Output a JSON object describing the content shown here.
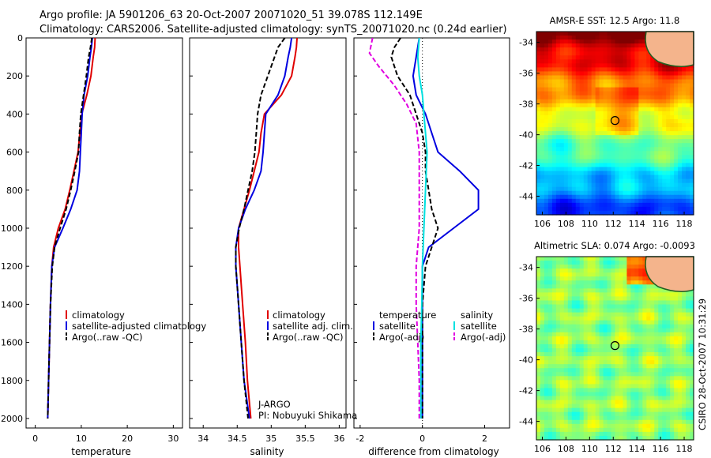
{
  "figure": {
    "title_line1": "Argo profile: JA 5901206_63 20-Oct-2007 20071020_51 39.078S 112.149E",
    "title_line2": "Climatology: CARS2006. Satellite-adjusted climatology: synTS_20071020.nc (0.24d earlier)",
    "vertical_note": "CSIRO 28-Oct-2007 10:31:29",
    "project_label": "J-ARGO",
    "pi_label": "PI: Nobuyuki Shikama"
  },
  "colors": {
    "climatology": "#e00000",
    "satellite": "#0000e0",
    "argo": "#000000",
    "salinity_satellite": "#00e0e0",
    "salinity_argo": "#e000e0",
    "land": "#f4b48c"
  },
  "chart_data": [
    {
      "type": "line",
      "xlabel": "temperature",
      "ylabel": "",
      "xlim": [
        -2,
        32
      ],
      "ylim": [
        2050,
        0
      ],
      "xticks": [
        0,
        10,
        20,
        30
      ],
      "yticks": [
        0,
        200,
        400,
        600,
        800,
        1000,
        1200,
        1400,
        1600,
        1800,
        2000
      ],
      "legend": [
        "climatology",
        "satellite-adjusted climatology",
        "Argo(..raw -QC)"
      ],
      "series": [
        {
          "name": "climatology",
          "style": "solid",
          "color": "#e00000",
          "points": [
            [
              13.0,
              0
            ],
            [
              12.9,
              50
            ],
            [
              12.6,
              100
            ],
            [
              12.1,
              200
            ],
            [
              11.2,
              300
            ],
            [
              10.1,
              400
            ],
            [
              9.7,
              500
            ],
            [
              9.3,
              600
            ],
            [
              8.4,
              700
            ],
            [
              7.5,
              800
            ],
            [
              6.5,
              900
            ],
            [
              5.0,
              1000
            ],
            [
              4.0,
              1100
            ],
            [
              3.6,
              1200
            ],
            [
              3.3,
              1400
            ],
            [
              3.1,
              1600
            ],
            [
              2.9,
              1800
            ],
            [
              2.7,
              2000
            ]
          ]
        },
        {
          "name": "satellite-adjusted climatology",
          "style": "solid",
          "color": "#0000e0",
          "points": [
            [
              12.4,
              0
            ],
            [
              12.2,
              50
            ],
            [
              11.9,
              100
            ],
            [
              11.4,
              200
            ],
            [
              10.6,
              300
            ],
            [
              10.2,
              400
            ],
            [
              10.0,
              500
            ],
            [
              9.8,
              600
            ],
            [
              9.6,
              700
            ],
            [
              9.1,
              800
            ],
            [
              7.7,
              900
            ],
            [
              6.0,
              1000
            ],
            [
              4.2,
              1100
            ],
            [
              3.6,
              1200
            ],
            [
              3.3,
              1400
            ],
            [
              3.1,
              1600
            ],
            [
              2.9,
              1800
            ],
            [
              2.7,
              2000
            ]
          ]
        },
        {
          "name": "Argo(..raw -QC)",
          "style": "dashed",
          "color": "#000000",
          "points": [
            [
              12.3,
              0
            ],
            [
              12.0,
              50
            ],
            [
              11.6,
              100
            ],
            [
              11.1,
              200
            ],
            [
              10.5,
              300
            ],
            [
              9.9,
              400
            ],
            [
              9.6,
              500
            ],
            [
              9.4,
              600
            ],
            [
              8.6,
              700
            ],
            [
              7.7,
              800
            ],
            [
              6.7,
              900
            ],
            [
              5.4,
              1000
            ],
            [
              4.2,
              1100
            ],
            [
              3.7,
              1200
            ],
            [
              3.3,
              1400
            ],
            [
              3.1,
              1600
            ],
            [
              2.9,
              1800
            ],
            [
              2.7,
              2000
            ]
          ]
        }
      ]
    },
    {
      "type": "line",
      "xlabel": "salinity",
      "ylabel": "",
      "xlim": [
        33.8,
        36.1
      ],
      "ylim": [
        2050,
        0
      ],
      "xticks": [
        34,
        34.5,
        35,
        35.5,
        36
      ],
      "legend": [
        "climatology",
        "satellite adj. clim.",
        "Argo(..raw -QC)"
      ],
      "series": [
        {
          "name": "climatology",
          "style": "solid",
          "color": "#e00000",
          "points": [
            [
              35.38,
              0
            ],
            [
              35.37,
              50
            ],
            [
              35.35,
              100
            ],
            [
              35.3,
              200
            ],
            [
              35.15,
              300
            ],
            [
              34.9,
              400
            ],
            [
              34.85,
              500
            ],
            [
              34.82,
              600
            ],
            [
              34.75,
              700
            ],
            [
              34.68,
              800
            ],
            [
              34.6,
              900
            ],
            [
              34.52,
              1000
            ],
            [
              34.52,
              1100
            ],
            [
              34.54,
              1200
            ],
            [
              34.58,
              1400
            ],
            [
              34.62,
              1600
            ],
            [
              34.65,
              1800
            ],
            [
              34.7,
              2000
            ]
          ]
        },
        {
          "name": "satellite adj. clim.",
          "style": "solid",
          "color": "#0000e0",
          "points": [
            [
              35.3,
              0
            ],
            [
              35.28,
              50
            ],
            [
              35.25,
              100
            ],
            [
              35.2,
              200
            ],
            [
              35.1,
              300
            ],
            [
              34.92,
              400
            ],
            [
              34.9,
              500
            ],
            [
              34.88,
              600
            ],
            [
              34.85,
              700
            ],
            [
              34.75,
              800
            ],
            [
              34.62,
              900
            ],
            [
              34.52,
              1000
            ],
            [
              34.48,
              1100
            ],
            [
              34.48,
              1200
            ],
            [
              34.52,
              1400
            ],
            [
              34.56,
              1600
            ],
            [
              34.6,
              1800
            ],
            [
              34.68,
              2000
            ]
          ]
        },
        {
          "name": "Argo(..raw -QC)",
          "style": "dashed",
          "color": "#000000",
          "points": [
            [
              35.2,
              0
            ],
            [
              35.1,
              50
            ],
            [
              35.05,
              100
            ],
            [
              34.95,
              200
            ],
            [
              34.85,
              300
            ],
            [
              34.8,
              400
            ],
            [
              34.78,
              500
            ],
            [
              34.76,
              600
            ],
            [
              34.72,
              700
            ],
            [
              34.66,
              800
            ],
            [
              34.6,
              900
            ],
            [
              34.53,
              1000
            ],
            [
              34.48,
              1100
            ],
            [
              34.48,
              1200
            ],
            [
              34.52,
              1400
            ],
            [
              34.56,
              1600
            ],
            [
              34.6,
              1800
            ],
            [
              34.66,
              2000
            ]
          ]
        }
      ]
    },
    {
      "type": "line",
      "xlabel": "difference from climatology",
      "ylabel": "",
      "xlim": [
        -2.2,
        2.8
      ],
      "ylim": [
        2050,
        0
      ],
      "xticks": [
        -2,
        0,
        2
      ],
      "legend": [
        "temperature",
        "satellite",
        "Argo(-adj)",
        "salinity",
        "satellite",
        "Argo(-adj)"
      ],
      "series": [
        {
          "name": "satellite",
          "group": "temperature",
          "style": "solid",
          "color": "#0000e0",
          "points": [
            [
              -0.1,
              0
            ],
            [
              -0.2,
              100
            ],
            [
              -0.3,
              200
            ],
            [
              -0.2,
              300
            ],
            [
              0.1,
              400
            ],
            [
              0.3,
              500
            ],
            [
              0.5,
              600
            ],
            [
              1.2,
              700
            ],
            [
              1.8,
              800
            ],
            [
              1.8,
              900
            ],
            [
              1.0,
              1000
            ],
            [
              0.2,
              1100
            ],
            [
              0.0,
              1200
            ],
            [
              0.0,
              1400
            ],
            [
              0.0,
              1600
            ],
            [
              0.0,
              1800
            ],
            [
              0.0,
              2000
            ]
          ]
        },
        {
          "name": "Argo(-adj)",
          "group": "temperature",
          "style": "dashed",
          "color": "#000000",
          "points": [
            [
              -0.7,
              0
            ],
            [
              -0.9,
              50
            ],
            [
              -1.0,
              100
            ],
            [
              -0.8,
              200
            ],
            [
              -0.4,
              300
            ],
            [
              -0.2,
              400
            ],
            [
              0.0,
              500
            ],
            [
              0.1,
              600
            ],
            [
              0.1,
              700
            ],
            [
              0.2,
              800
            ],
            [
              0.3,
              900
            ],
            [
              0.5,
              1000
            ],
            [
              0.3,
              1100
            ],
            [
              0.1,
              1200
            ],
            [
              0.0,
              1400
            ],
            [
              0.0,
              1600
            ],
            [
              0.0,
              1800
            ],
            [
              0.0,
              2000
            ]
          ]
        },
        {
          "name": "satellite",
          "group": "salinity",
          "style": "solid",
          "color": "#00e0e0",
          "points": [
            [
              -0.1,
              0
            ],
            [
              -0.15,
              100
            ],
            [
              -0.1,
              200
            ],
            [
              0.0,
              300
            ],
            [
              0.05,
              400
            ],
            [
              0.1,
              500
            ],
            [
              0.15,
              600
            ],
            [
              0.1,
              800
            ],
            [
              0.05,
              1000
            ],
            [
              0.0,
              1200
            ],
            [
              -0.02,
              1400
            ],
            [
              -0.05,
              1600
            ],
            [
              -0.05,
              1800
            ],
            [
              -0.05,
              2000
            ]
          ]
        },
        {
          "name": "Argo(-adj)",
          "group": "salinity",
          "style": "dashed",
          "color": "#e000e0",
          "points": [
            [
              -1.6,
              0
            ],
            [
              -1.7,
              80
            ],
            [
              -1.4,
              150
            ],
            [
              -0.9,
              250
            ],
            [
              -0.5,
              350
            ],
            [
              -0.2,
              450
            ],
            [
              -0.1,
              600
            ],
            [
              -0.1,
              800
            ],
            [
              -0.1,
              1000
            ],
            [
              -0.2,
              1200
            ],
            [
              -0.2,
              1400
            ],
            [
              -0.15,
              1600
            ],
            [
              -0.1,
              1800
            ],
            [
              -0.1,
              2000
            ]
          ]
        }
      ]
    },
    {
      "type": "heatmap",
      "title": "AMSR-E SST: 12.5 Argo: 11.8",
      "xlim": [
        105.5,
        118.8
      ],
      "ylim": [
        -45.2,
        -33.3
      ],
      "xticks": [
        106,
        108,
        110,
        112,
        114,
        116,
        118
      ],
      "yticks": [
        -34,
        -36,
        -38,
        -40,
        -42,
        -44
      ],
      "marker": {
        "lon": 112.149,
        "lat": -39.078
      }
    },
    {
      "type": "heatmap",
      "title": "Altimetric SLA: 0.074 Argo: -0.0093",
      "xlim": [
        105.5,
        118.8
      ],
      "ylim": [
        -45.2,
        -33.3
      ],
      "xticks": [
        106,
        108,
        110,
        112,
        114,
        116,
        118
      ],
      "yticks": [
        -34,
        -36,
        -38,
        -40,
        -42,
        -44
      ],
      "marker": {
        "lon": 112.149,
        "lat": -39.078
      }
    }
  ]
}
